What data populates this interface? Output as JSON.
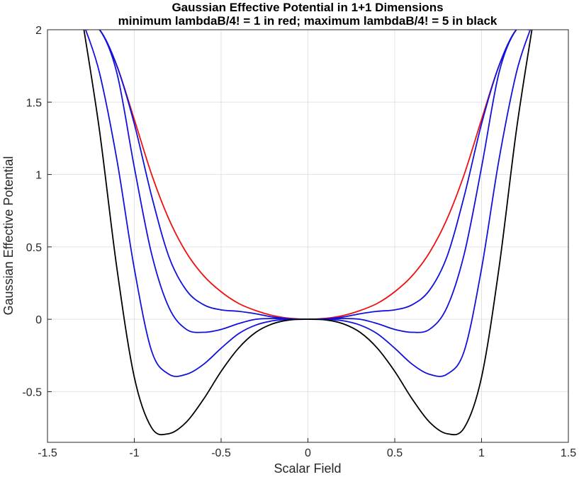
{
  "chart_data": {
    "type": "line",
    "title": "Gaussian Effective Potential in 1+1 Dimensions",
    "subtitle": "minimum lambdaB/4! = 1 in red; maximum lambdaB/4! = 5 in black",
    "xlabel": "Scalar Field",
    "ylabel": "Gaussian Effective Potential",
    "xlim": [
      -1.5,
      1.5
    ],
    "ylim": [
      -0.85,
      2
    ],
    "xticks": [
      -1.5,
      -1,
      -0.5,
      0,
      0.5,
      1,
      1.5
    ],
    "xtick_labels": [
      "-1.5",
      "-1",
      "-0.5",
      "0",
      "0.5",
      "1",
      "1.5"
    ],
    "yticks": [
      -0.5,
      0,
      0.5,
      1,
      1.5,
      2
    ],
    "ytick_labels": [
      "-0.5",
      "0",
      "0.5",
      "1",
      "1.5",
      "2"
    ],
    "grid": true,
    "series": [
      {
        "color": "#ee1111",
        "x": [
          0,
          0.1,
          0.2,
          0.3,
          0.4,
          0.5,
          0.6,
          0.7,
          0.8,
          0.9,
          1.0,
          1.1,
          1.2,
          1.27
        ],
        "values": [
          0,
          0.006,
          0.025,
          0.06,
          0.11,
          0.19,
          0.3,
          0.46,
          0.69,
          1.0,
          1.38,
          1.75,
          2.0,
          2.0
        ]
      },
      {
        "color": "#1111dd",
        "x": [
          0,
          0.1,
          0.2,
          0.3,
          0.4,
          0.5,
          0.6,
          0.7,
          0.8,
          0.9,
          1.0,
          1.1,
          1.2,
          1.27
        ],
        "values": [
          0,
          0.003,
          0.015,
          0.038,
          0.055,
          0.065,
          0.1,
          0.2,
          0.43,
          0.85,
          1.35,
          1.75,
          2.0,
          2.0
        ]
      },
      {
        "color": "#1111dd",
        "x": [
          0,
          0.1,
          0.2,
          0.3,
          0.4,
          0.5,
          0.6,
          0.7,
          0.8,
          0.9,
          1.0,
          1.1,
          1.2,
          1.28
        ],
        "values": [
          0,
          0.002,
          0.005,
          0.0,
          -0.03,
          -0.07,
          -0.09,
          -0.07,
          0.08,
          0.45,
          1.05,
          1.7,
          2.0,
          2.0
        ]
      },
      {
        "color": "#1111dd",
        "x": [
          0,
          0.1,
          0.2,
          0.3,
          0.4,
          0.5,
          0.6,
          0.7,
          0.8,
          0.9,
          1.0,
          1.1,
          1.2,
          1.28
        ],
        "values": [
          0,
          0.0,
          -0.01,
          -0.04,
          -0.1,
          -0.2,
          -0.31,
          -0.38,
          -0.38,
          -0.22,
          0.35,
          1.1,
          1.7,
          2.0
        ]
      },
      {
        "color": "#000000",
        "x": [
          0,
          0.1,
          0.2,
          0.3,
          0.4,
          0.5,
          0.6,
          0.7,
          0.8,
          0.9,
          1.0,
          1.1,
          1.2,
          1.29
        ],
        "values": [
          0,
          -0.004,
          -0.03,
          -0.09,
          -0.2,
          -0.36,
          -0.55,
          -0.71,
          -0.79,
          -0.75,
          -0.4,
          0.35,
          1.3,
          2.0
        ]
      }
    ]
  }
}
